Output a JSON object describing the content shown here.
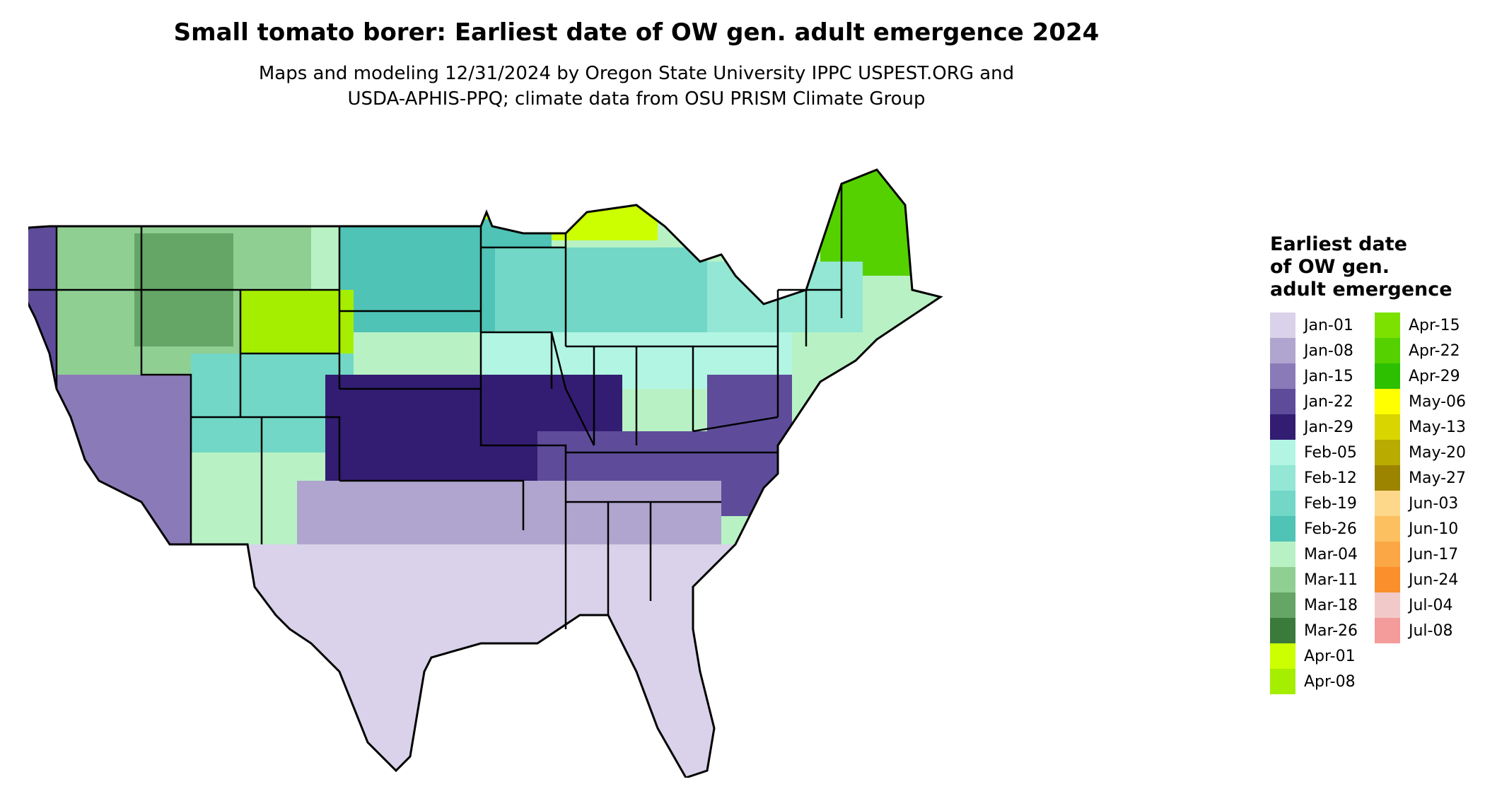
{
  "title": "Small tomato borer: Earliest date of OW gen. adult emergence 2024",
  "subtitle_line1": "Maps and modeling 12/31/2024 by Oregon State University IPPC USPEST.ORG and",
  "subtitle_line2": "USDA-APHIS-PPQ; climate data from OSU PRISM Climate Group",
  "legend": {
    "title_lines": [
      "Earliest date",
      "of OW gen.",
      "adult emergence"
    ],
    "items": [
      {
        "label": "Jan-01",
        "color": "#d9d2ea"
      },
      {
        "label": "Jan-08",
        "color": "#b0a5cf"
      },
      {
        "label": "Jan-15",
        "color": "#8a7bb8"
      },
      {
        "label": "Jan-22",
        "color": "#5e4c9a"
      },
      {
        "label": "Jan-29",
        "color": "#321d72"
      },
      {
        "label": "Feb-05",
        "color": "#b2f5e3"
      },
      {
        "label": "Feb-12",
        "color": "#93e7d4"
      },
      {
        "label": "Feb-19",
        "color": "#72d7c7"
      },
      {
        "label": "Feb-26",
        "color": "#4fc3b5"
      },
      {
        "label": "Mar-04",
        "color": "#b8f2c4"
      },
      {
        "label": "Mar-11",
        "color": "#90cf92"
      },
      {
        "label": "Mar-18",
        "color": "#65a566"
      },
      {
        "label": "Mar-26",
        "color": "#3a7a3a"
      },
      {
        "label": "Apr-01",
        "color": "#ccff00"
      },
      {
        "label": "Apr-08",
        "color": "#a5ee00"
      },
      {
        "label": "Apr-15",
        "color": "#7de100"
      },
      {
        "label": "Apr-22",
        "color": "#55d100"
      },
      {
        "label": "Apr-29",
        "color": "#2dc000"
      },
      {
        "label": "May-06",
        "color": "#ffff00"
      },
      {
        "label": "May-13",
        "color": "#d8d500"
      },
      {
        "label": "May-20",
        "color": "#b9ab00"
      },
      {
        "label": "May-27",
        "color": "#9c8400"
      },
      {
        "label": "Jun-03",
        "color": "#fdd88a"
      },
      {
        "label": "Jun-10",
        "color": "#fcc060"
      },
      {
        "label": "Jun-17",
        "color": "#fba746"
      },
      {
        "label": "Jun-24",
        "color": "#fb8f2c"
      },
      {
        "label": "Jul-04",
        "color": "#f2c9c9"
      },
      {
        "label": "Jul-08",
        "color": "#f49b9b"
      }
    ]
  }
}
